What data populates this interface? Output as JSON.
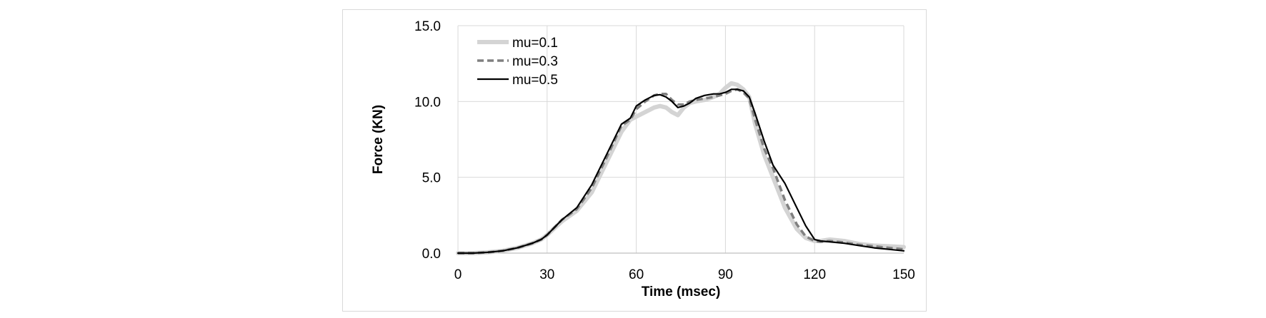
{
  "chart_data": {
    "type": "line",
    "title": "",
    "xlabel": "Time (msec)",
    "ylabel": "Force (KN)",
    "xlim": [
      0,
      150
    ],
    "ylim": [
      0,
      15
    ],
    "xticks": [
      0,
      30,
      60,
      90,
      120,
      150
    ],
    "yticks": [
      0,
      5,
      10,
      15
    ],
    "xtick_labels": [
      "0",
      "30",
      "60",
      "90",
      "120",
      "150"
    ],
    "ytick_labels": [
      "0.0",
      "5.0",
      "10.0",
      "15.0"
    ],
    "grid": true,
    "legend_position": "top-left",
    "series": [
      {
        "name": "mu=0.1",
        "color": "#d4d4d4",
        "style": "solid-thick",
        "x": [
          0,
          5,
          10,
          15,
          20,
          25,
          28,
          30,
          35,
          40,
          45,
          50,
          55,
          58,
          60,
          63,
          66,
          68,
          70,
          72,
          74,
          76,
          78,
          80,
          83,
          86,
          88,
          90,
          92,
          94,
          96,
          98,
          100,
          103,
          106,
          110,
          114,
          117,
          120,
          122,
          125,
          130,
          135,
          140,
          145,
          150
        ],
        "y": [
          0,
          0,
          0.05,
          0.15,
          0.35,
          0.65,
          0.9,
          1.2,
          2.1,
          2.8,
          4.0,
          6.0,
          8.0,
          8.8,
          9.0,
          9.3,
          9.6,
          9.7,
          9.6,
          9.3,
          9.1,
          9.6,
          9.9,
          10.0,
          10.1,
          10.3,
          10.5,
          10.9,
          11.2,
          11.1,
          10.8,
          10.3,
          8.5,
          6.5,
          5.0,
          3.0,
          1.6,
          1.0,
          0.8,
          0.8,
          0.9,
          0.8,
          0.6,
          0.5,
          0.45,
          0.4
        ]
      },
      {
        "name": "mu=0.3",
        "color": "#808080",
        "style": "dashed",
        "x": [
          0,
          5,
          10,
          15,
          20,
          25,
          28,
          30,
          35,
          40,
          45,
          50,
          55,
          58,
          60,
          63,
          66,
          68,
          70,
          72,
          74,
          76,
          78,
          80,
          83,
          86,
          88,
          90,
          92,
          94,
          96,
          98,
          100,
          103,
          106,
          110,
          114,
          117,
          120,
          122,
          125,
          130,
          135,
          140,
          145,
          150
        ],
        "y": [
          0,
          0,
          0.05,
          0.15,
          0.35,
          0.65,
          0.9,
          1.2,
          2.2,
          2.9,
          4.3,
          6.3,
          8.4,
          8.8,
          9.5,
          10.0,
          10.4,
          10.5,
          10.5,
          10.1,
          9.8,
          9.8,
          10.0,
          10.1,
          10.2,
          10.3,
          10.4,
          10.5,
          10.7,
          10.8,
          10.6,
          10.2,
          8.8,
          6.9,
          5.6,
          3.5,
          1.9,
          1.1,
          0.8,
          0.75,
          0.8,
          0.7,
          0.55,
          0.45,
          0.35,
          0.25
        ]
      },
      {
        "name": "mu=0.5",
        "color": "#000000",
        "style": "solid",
        "x": [
          0,
          5,
          10,
          15,
          20,
          25,
          28,
          30,
          35,
          40,
          45,
          50,
          55,
          58,
          60,
          63,
          66,
          68,
          70,
          72,
          74,
          76,
          78,
          80,
          83,
          86,
          88,
          90,
          92,
          94,
          96,
          98,
          100,
          103,
          106,
          110,
          114,
          117,
          120,
          122,
          125,
          130,
          135,
          140,
          145,
          150
        ],
        "y": [
          0,
          0,
          0.05,
          0.15,
          0.35,
          0.65,
          0.9,
          1.2,
          2.2,
          3.0,
          4.5,
          6.5,
          8.5,
          8.9,
          9.7,
          10.1,
          10.4,
          10.45,
          10.3,
          10.0,
          9.6,
          9.7,
          9.9,
          10.2,
          10.4,
          10.5,
          10.5,
          10.6,
          10.8,
          10.8,
          10.7,
          10.3,
          9.2,
          7.4,
          5.8,
          4.6,
          3.0,
          1.8,
          0.9,
          0.8,
          0.75,
          0.65,
          0.5,
          0.35,
          0.25,
          0.15
        ]
      }
    ]
  }
}
